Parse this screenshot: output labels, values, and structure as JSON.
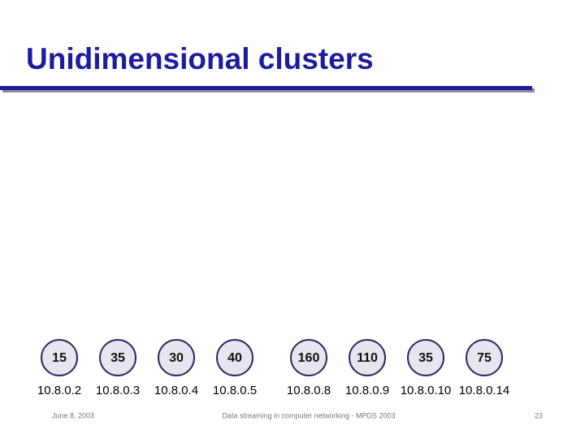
{
  "header": {
    "title": "Unidimensional clusters"
  },
  "nodes": [
    {
      "count": 15,
      "label": "10.8.0.2"
    },
    {
      "count": 35,
      "label": "10.8.0.3"
    },
    {
      "count": 30,
      "label": "10.8.0.4"
    },
    {
      "count": 40,
      "label": "10.8.0.5"
    },
    {
      "count": 160,
      "label": "10.8.0.8"
    },
    {
      "count": 110,
      "label": "10.8.0.9"
    },
    {
      "count": 35,
      "label": "10.8.0.10"
    },
    {
      "count": 75,
      "label": "10.8.0.14"
    }
  ],
  "footer": {
    "date": "June 8, 2003",
    "center": "Data streaming in computer networking - MPDS 2003",
    "page": "23"
  }
}
